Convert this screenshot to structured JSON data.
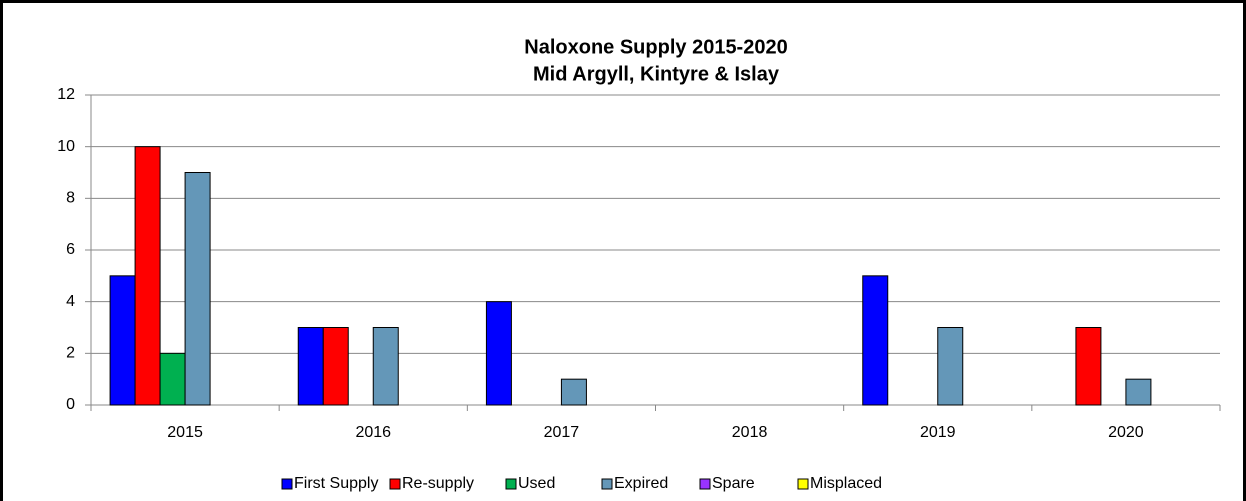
{
  "chart_data": {
    "type": "bar",
    "title": "Naloxone Supply 2015-2020",
    "subtitle": "Mid Argyll, Kintyre & Islay",
    "categories": [
      "2015",
      "2016",
      "2017",
      "2018",
      "2019",
      "2020"
    ],
    "series": [
      {
        "name": "First Supply",
        "color": "#0000ff",
        "values": [
          5,
          3,
          4,
          0,
          5,
          0
        ]
      },
      {
        "name": "Re-supply",
        "color": "#ff0000",
        "values": [
          10,
          3,
          0,
          0,
          0,
          3
        ]
      },
      {
        "name": "Used",
        "color": "#00b050",
        "values": [
          2,
          0,
          0,
          0,
          0,
          0
        ]
      },
      {
        "name": "Expired",
        "color": "#6497b8",
        "values": [
          9,
          3,
          1,
          0,
          3,
          1
        ]
      },
      {
        "name": "Spare",
        "color": "#9933ff",
        "values": [
          0,
          0,
          0,
          0,
          0,
          0
        ]
      },
      {
        "name": "Misplaced",
        "color": "#ffff00",
        "values": [
          0,
          0,
          0,
          0,
          0,
          0
        ]
      }
    ],
    "ylim": [
      0,
      12
    ],
    "yticks": [
      0,
      2,
      4,
      6,
      8,
      10,
      12
    ],
    "grid": true,
    "legend": "bottom"
  }
}
